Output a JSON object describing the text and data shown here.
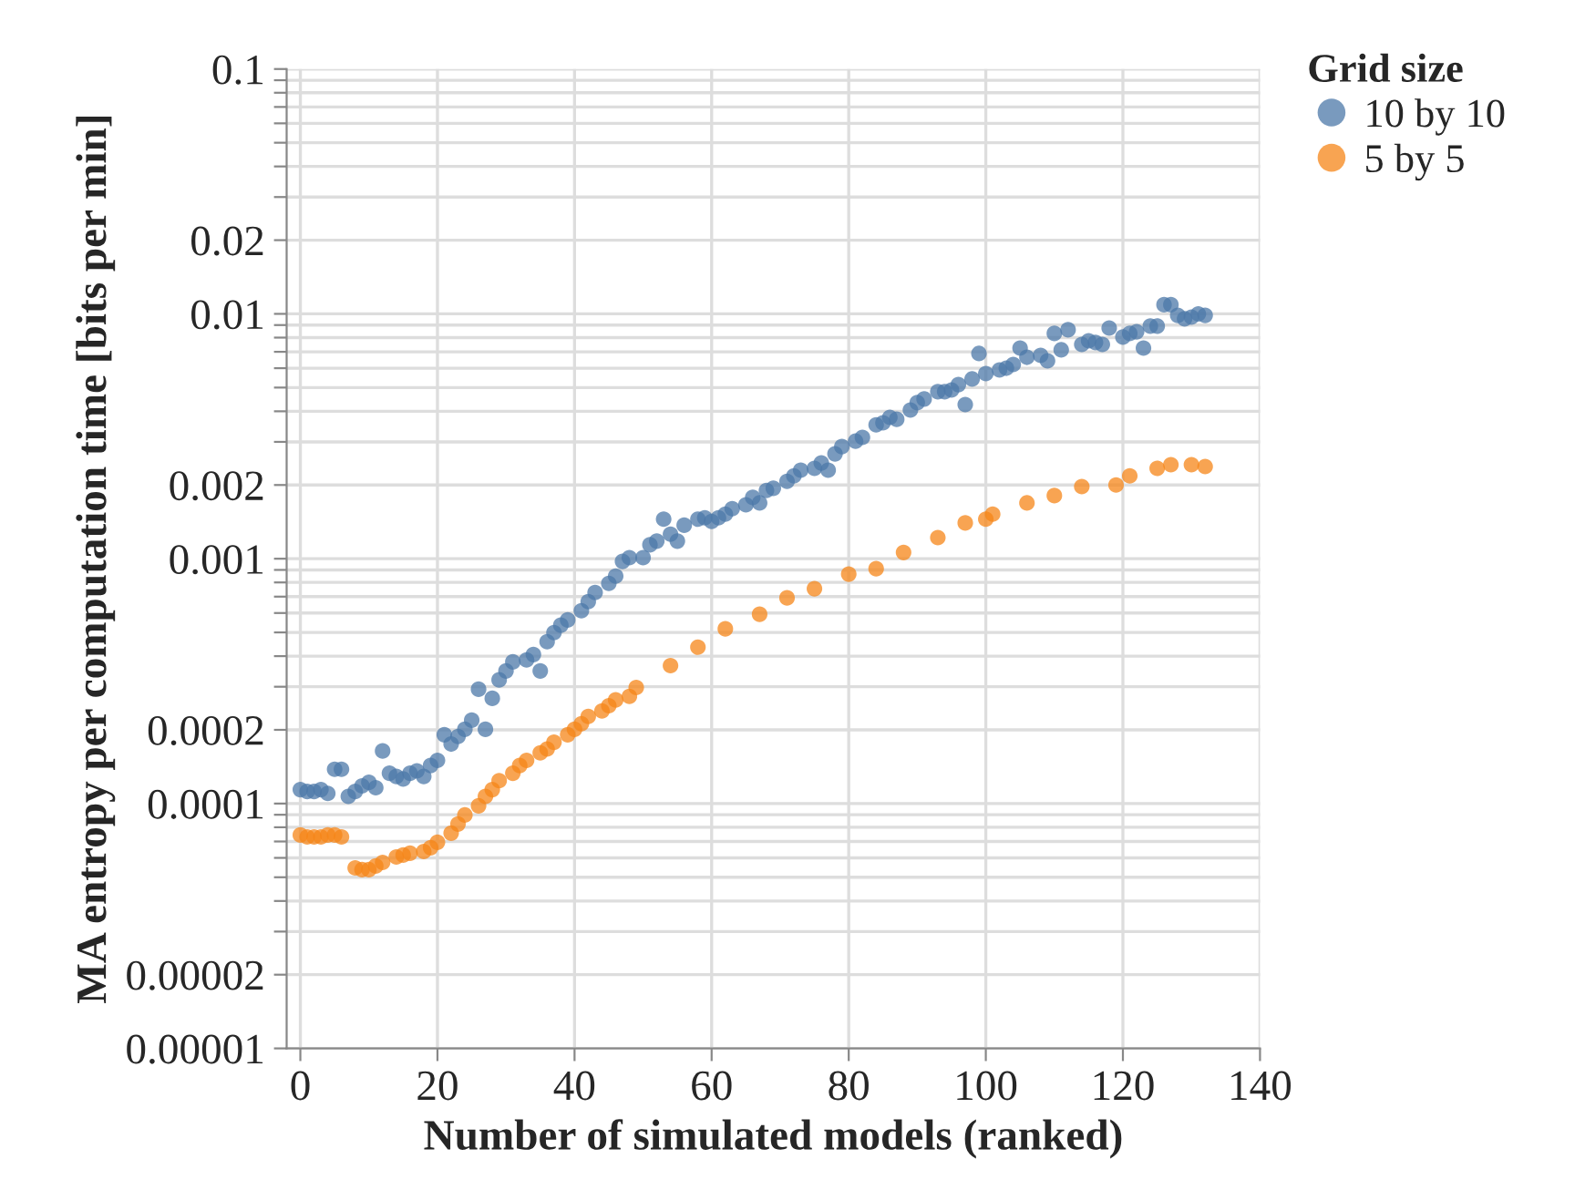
{
  "chart_data": {
    "type": "scatter",
    "xlabel": "Number of simulated models (ranked)",
    "ylabel": "MA entropy per computation time [bits per min]",
    "legend_title": "Grid size",
    "legend": "top right",
    "grid": true,
    "marker": "circle",
    "log": "y",
    "xlim": [
      -2,
      140
    ],
    "xticks": [
      0,
      20,
      40,
      60,
      80,
      100,
      120,
      140
    ],
    "ylim": [
      1e-05,
      0.1
    ],
    "yticks": [
      {
        "value": 1e-05,
        "label": "0.00001"
      },
      {
        "value": 2e-05,
        "label": "0.00002"
      },
      {
        "value": 3e-05,
        "label": null
      },
      {
        "value": 4e-05,
        "label": null
      },
      {
        "value": 5e-05,
        "label": null
      },
      {
        "value": 6e-05,
        "label": null
      },
      {
        "value": 7e-05,
        "label": null
      },
      {
        "value": 8e-05,
        "label": null
      },
      {
        "value": 9e-05,
        "label": null
      },
      {
        "value": 0.0001,
        "label": "0.0001"
      },
      {
        "value": 0.0002,
        "label": "0.0002"
      },
      {
        "value": 0.0003,
        "label": null
      },
      {
        "value": 0.0004,
        "label": null
      },
      {
        "value": 0.0005,
        "label": null
      },
      {
        "value": 0.0006,
        "label": null
      },
      {
        "value": 0.0007,
        "label": null
      },
      {
        "value": 0.0008,
        "label": null
      },
      {
        "value": 0.0009,
        "label": null
      },
      {
        "value": 0.001,
        "label": "0.001"
      },
      {
        "value": 0.002,
        "label": "0.002"
      },
      {
        "value": 0.003,
        "label": null
      },
      {
        "value": 0.004,
        "label": null
      },
      {
        "value": 0.005,
        "label": null
      },
      {
        "value": 0.006,
        "label": null
      },
      {
        "value": 0.007,
        "label": null
      },
      {
        "value": 0.008,
        "label": null
      },
      {
        "value": 0.009,
        "label": null
      },
      {
        "value": 0.01,
        "label": "0.01"
      },
      {
        "value": 0.02,
        "label": "0.02"
      },
      {
        "value": 0.03,
        "label": null
      },
      {
        "value": 0.04,
        "label": null
      },
      {
        "value": 0.05,
        "label": null
      },
      {
        "value": 0.06,
        "label": null
      },
      {
        "value": 0.07,
        "label": null
      },
      {
        "value": 0.08,
        "label": null
      },
      {
        "value": 0.09,
        "label": null
      },
      0.1
    ],
    "series": [
      {
        "name": "10 by 10",
        "color": "#4c78a8",
        "x": [
          0,
          1,
          2,
          3,
          4,
          5,
          6,
          7,
          8,
          9,
          10,
          11,
          12,
          13,
          14,
          15,
          16,
          17,
          18,
          19,
          20,
          21,
          22,
          23,
          24,
          25,
          26,
          27,
          28,
          29,
          30,
          31,
          33,
          34,
          35,
          36,
          37,
          38,
          39,
          41,
          42,
          43,
          45,
          46,
          47,
          48,
          50,
          51,
          52,
          53,
          54,
          55,
          56,
          58,
          59,
          60,
          61,
          62,
          63,
          65,
          66,
          67,
          68,
          69,
          71,
          72,
          73,
          75,
          76,
          77,
          78,
          79,
          81,
          82,
          84,
          85,
          86,
          87,
          89,
          90,
          91,
          93,
          94,
          95,
          96,
          97,
          98,
          99,
          100,
          102,
          103,
          104,
          105,
          106,
          108,
          109,
          110,
          111,
          112,
          114,
          115,
          116,
          117,
          118,
          120,
          121,
          122,
          123,
          124,
          125,
          126,
          127,
          128,
          129,
          130,
          131,
          132
        ],
        "values": [
          0.000114,
          0.000112,
          0.000112,
          0.000114,
          0.00011,
          0.000138,
          0.000138,
          0.000107,
          0.000112,
          0.000118,
          0.000122,
          0.000116,
          0.000164,
          0.000133,
          0.000129,
          0.000126,
          0.000133,
          0.000136,
          0.000129,
          0.000143,
          0.00015,
          0.000191,
          0.000175,
          0.000188,
          0.000201,
          0.000219,
          0.000293,
          0.000201,
          0.000269,
          0.00032,
          0.000348,
          0.000379,
          0.000386,
          0.000406,
          0.000348,
          0.000458,
          0.000499,
          0.000535,
          0.000562,
          0.000613,
          0.000668,
          0.000728,
          0.000793,
          0.000849,
          0.000975,
          0.00101,
          0.00101,
          0.00114,
          0.00118,
          0.00145,
          0.00126,
          0.00118,
          0.00137,
          0.00145,
          0.00147,
          0.00142,
          0.00147,
          0.00152,
          0.0016,
          0.00166,
          0.00178,
          0.00169,
          0.0019,
          0.00194,
          0.00207,
          0.00218,
          0.0023,
          0.00234,
          0.00246,
          0.0023,
          0.00268,
          0.00287,
          0.00302,
          0.00313,
          0.00352,
          0.00359,
          0.00378,
          0.00371,
          0.00405,
          0.00434,
          0.00449,
          0.00481,
          0.00481,
          0.00489,
          0.00514,
          0.00426,
          0.00542,
          0.00689,
          0.0057,
          0.0059,
          0.006,
          0.00621,
          0.00725,
          0.00665,
          0.00677,
          0.00643,
          0.00832,
          0.00713,
          0.00861,
          0.0075,
          0.00776,
          0.00764,
          0.0075,
          0.00875,
          0.00804,
          0.00832,
          0.00845,
          0.00725,
          0.00891,
          0.00891,
          0.0109,
          0.0109,
          0.00986,
          0.00955,
          0.0097,
          0.01,
          0.00986
        ]
      },
      {
        "name": "5 by 5",
        "color": "#f58518",
        "x": [
          0,
          1,
          2,
          3,
          4,
          5,
          6,
          8,
          9,
          10,
          11,
          12,
          14,
          15,
          16,
          18,
          19,
          20,
          22,
          23,
          24,
          26,
          27,
          28,
          29,
          31,
          32,
          33,
          35,
          36,
          37,
          39,
          40,
          41,
          42,
          44,
          45,
          46,
          48,
          49,
          54,
          58,
          62,
          67,
          71,
          75,
          80,
          84,
          88,
          93,
          97,
          100,
          101,
          106,
          110,
          114,
          119,
          121,
          125,
          127,
          130,
          132
        ],
        "values": [
          7.44e-05,
          7.31e-05,
          7.31e-05,
          7.31e-05,
          7.44e-05,
          7.44e-05,
          7.31e-05,
          5.46e-05,
          5.37e-05,
          5.37e-05,
          5.56e-05,
          5.75e-05,
          6.05e-05,
          6.16e-05,
          6.27e-05,
          6.37e-05,
          6.6e-05,
          6.95e-05,
          7.57e-05,
          8.25e-05,
          8.98e-05,
          9.79e-05,
          0.000107,
          0.000114,
          0.000124,
          0.000133,
          0.000143,
          0.00015,
          0.000161,
          0.000167,
          0.000178,
          0.000191,
          0.000201,
          0.000212,
          0.000227,
          0.000239,
          0.000251,
          0.000265,
          0.000274,
          0.000298,
          0.000366,
          0.000435,
          0.000517,
          0.000593,
          0.000692,
          0.000754,
          0.000865,
          0.00091,
          0.00106,
          0.00122,
          0.0014,
          0.00145,
          0.00152,
          0.00169,
          0.00181,
          0.00197,
          0.002,
          0.00218,
          0.00234,
          0.00242,
          0.00242,
          0.00238
        ]
      }
    ]
  }
}
